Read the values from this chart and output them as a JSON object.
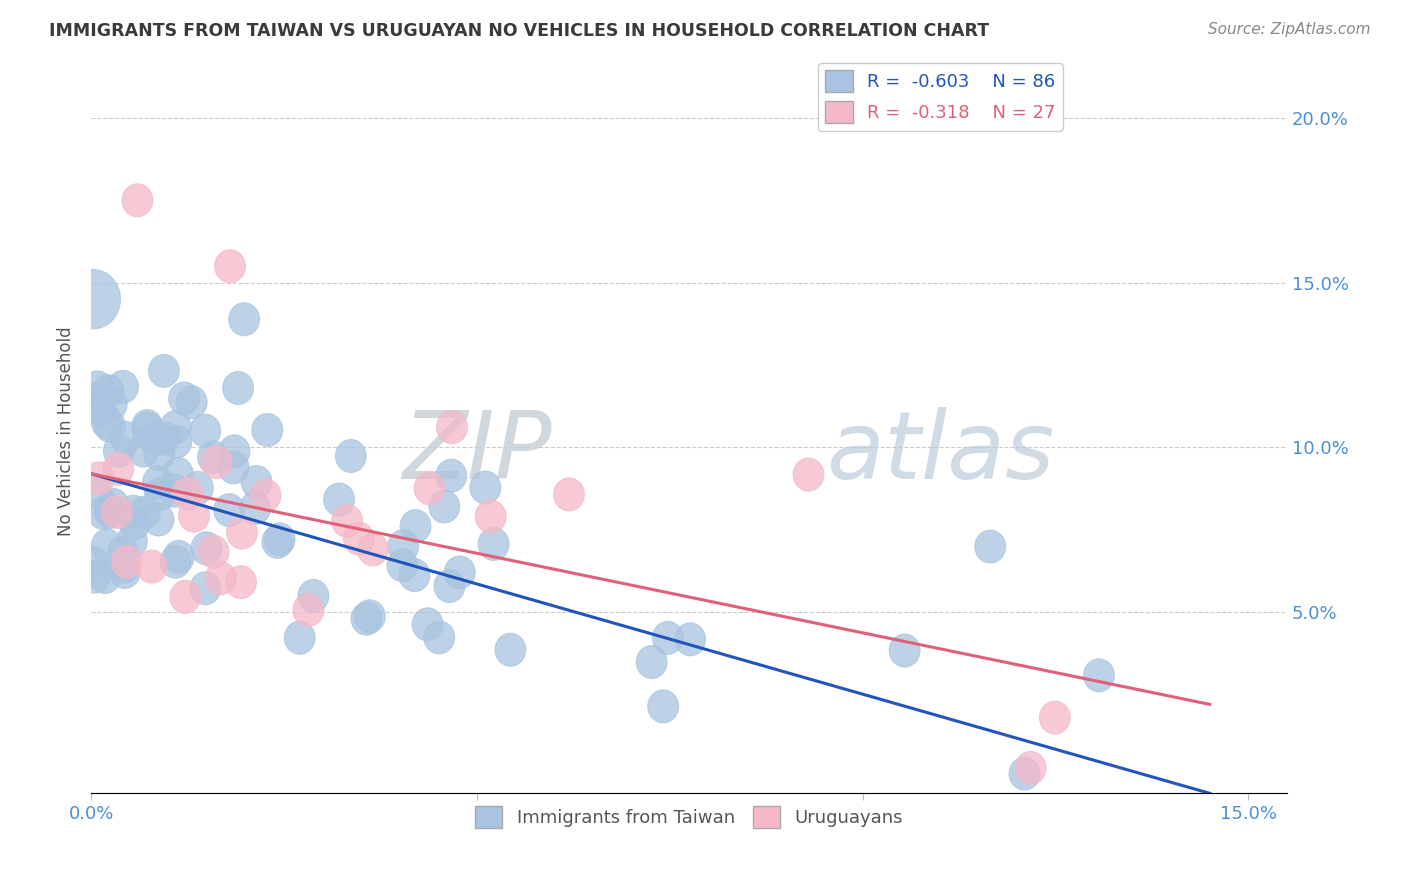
{
  "title": "IMMIGRANTS FROM TAIWAN VS URUGUAYAN NO VEHICLES IN HOUSEHOLD CORRELATION CHART",
  "source": "Source: ZipAtlas.com",
  "ylabel": "No Vehicles in Household",
  "xlim": [
    0.0,
    0.155
  ],
  "ylim": [
    -0.005,
    0.215
  ],
  "taiwan_R": -0.603,
  "taiwan_N": 86,
  "uruguay_R": -0.318,
  "uruguay_N": 27,
  "taiwan_color": "#a8c4e0",
  "uruguay_color": "#f4b8c8",
  "taiwan_line_color": "#2255bb",
  "uruguay_line_color": "#e0607a",
  "background_color": "#ffffff",
  "grid_color": "#cccccc",
  "title_color": "#3a3a3a",
  "axis_label_color": "#555555",
  "tick_label_color": "#4a90d9",
  "tw_line_x0": 0.0,
  "tw_line_y0": 0.092,
  "tw_line_x1": 0.145,
  "tw_line_y1": -0.005,
  "uy_line_x0": 0.0,
  "uy_line_y0": 0.092,
  "uy_line_x1": 0.145,
  "uy_line_y1": 0.022
}
